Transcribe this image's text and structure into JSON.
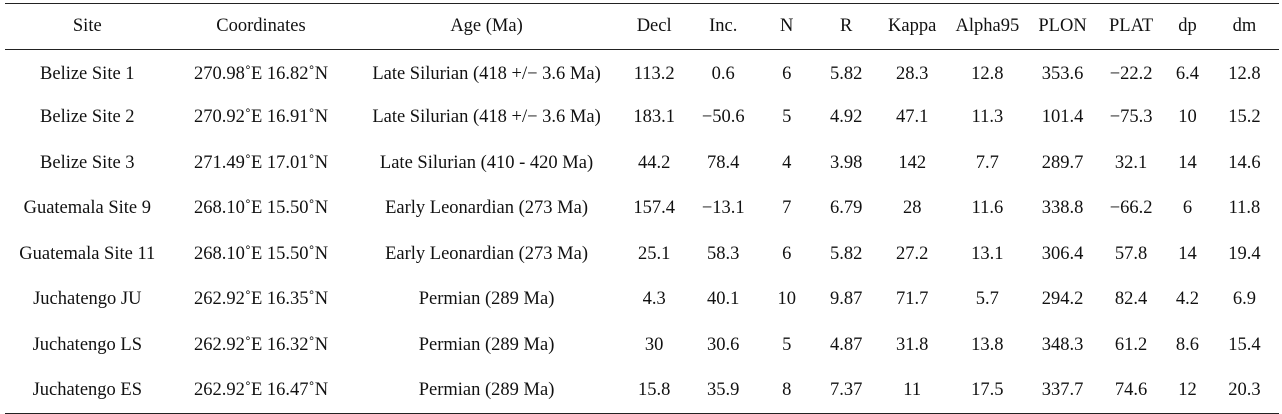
{
  "table": {
    "headers": [
      "Site",
      "Coordinates",
      "Age (Ma)",
      "Decl",
      "Inc.",
      "N",
      "R",
      "Kappa",
      "Alpha95",
      "PLON",
      "PLAT",
      "dp",
      "dm"
    ],
    "rows": [
      [
        "Belize Site 1",
        "270.98˚E 16.82˚N",
        "Late Silurian (418 +/− 3.6 Ma)",
        "113.2",
        "0.6",
        "6",
        "5.82",
        "28.3",
        "12.8",
        "353.6",
        "−22.2",
        "6.4",
        "12.8"
      ],
      [
        "Belize Site 2",
        "270.92˚E 16.91˚N",
        "Late Silurian (418 +/− 3.6 Ma)",
        "183.1",
        "−50.6",
        "5",
        "4.92",
        "47.1",
        "11.3",
        "101.4",
        "−75.3",
        "10",
        "15.2"
      ],
      [
        "Belize Site 3",
        "271.49˚E 17.01˚N",
        "Late Silurian (410 - 420 Ma)",
        "44.2",
        "78.4",
        "4",
        "3.98",
        "142",
        "7.7",
        "289.7",
        "32.1",
        "14",
        "14.6"
      ],
      [
        "Guatemala Site 9",
        "268.10˚E 15.50˚N",
        "Early Leonardian (273 Ma)",
        "157.4",
        "−13.1",
        "7",
        "6.79",
        "28",
        "11.6",
        "338.8",
        "−66.2",
        "6",
        "11.8"
      ],
      [
        "Guatemala Site 11",
        "268.10˚E 15.50˚N",
        "Early Leonardian (273 Ma)",
        "25.1",
        "58.3",
        "6",
        "5.82",
        "27.2",
        "13.1",
        "306.4",
        "57.8",
        "14",
        "19.4"
      ],
      [
        "Juchatengo JU",
        "262.92˚E 16.35˚N",
        "Permian (289 Ma)",
        "4.3",
        "40.1",
        "10",
        "9.87",
        "71.7",
        "5.7",
        "294.2",
        "82.4",
        "4.2",
        "6.9"
      ],
      [
        "Juchatengo LS",
        "262.92˚E 16.32˚N",
        "Permian (289 Ma)",
        "30",
        "30.6",
        "5",
        "4.87",
        "31.8",
        "13.8",
        "348.3",
        "61.2",
        "8.6",
        "15.4"
      ],
      [
        "Juchatengo ES",
        "262.92˚E 16.47˚N",
        "Permian (289 Ma)",
        "15.8",
        "35.9",
        "8",
        "7.37",
        "11",
        "17.5",
        "337.7",
        "74.6",
        "12",
        "20.3"
      ]
    ]
  }
}
